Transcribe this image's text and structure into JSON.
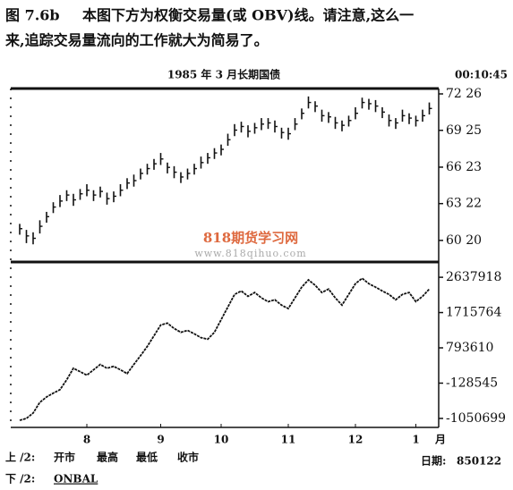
{
  "caption": {
    "label": "图 7.6b",
    "line1": "本图下方为权衡交易量(或 OBV)线。请注意,这么一",
    "line2": "来,追踪交易量流向的工作就大为简易了。"
  },
  "watermark": {
    "brand": "818期货学习网",
    "url": "www.818qihuo.com"
  },
  "chart_data": [
    {
      "type": "ohlc",
      "title": "1985 年 3 月长期国债",
      "time": "00:10:45",
      "high": [
        62.0,
        61.5,
        61.3,
        62.3,
        63.0,
        63.8,
        64.4,
        64.8,
        64.5,
        64.9,
        65.3,
        64.8,
        65.1,
        64.6,
        64.7,
        65.3,
        65.8,
        66.1,
        66.6,
        67.0,
        67.4,
        67.9,
        67.1,
        66.8,
        66.3,
        66.6,
        67.0,
        67.6,
        67.9,
        68.3,
        68.6,
        69.5,
        70.3,
        70.5,
        70.2,
        70.4,
        70.8,
        70.8,
        70.6,
        70.0,
        70.0,
        70.8,
        71.6,
        72.6,
        72.2,
        71.5,
        71.3,
        70.9,
        70.6,
        71.0,
        71.7,
        72.5,
        72.4,
        72.3,
        71.7,
        71.1,
        70.8,
        71.5,
        71.2,
        71.0,
        71.5,
        72.1
      ],
      "low": [
        61.1,
        60.4,
        60.3,
        61.2,
        62.1,
        62.9,
        63.4,
        63.9,
        63.5,
        64.0,
        64.3,
        63.9,
        64.2,
        63.6,
        63.8,
        64.3,
        64.9,
        65.1,
        65.7,
        66.1,
        66.5,
        66.9,
        66.2,
        65.8,
        65.4,
        65.7,
        66.1,
        66.6,
        67.0,
        67.4,
        67.7,
        68.5,
        69.3,
        69.6,
        69.2,
        69.5,
        69.8,
        69.9,
        69.6,
        69.1,
        69.0,
        69.8,
        70.7,
        71.6,
        71.3,
        70.5,
        70.4,
        69.9,
        69.7,
        70.1,
        70.7,
        71.6,
        71.5,
        71.3,
        70.8,
        70.1,
        69.9,
        70.5,
        70.3,
        70.1,
        70.5,
        71.1
      ],
      "close": [
        61.6,
        61.0,
        60.8,
        61.8,
        62.6,
        63.4,
        63.9,
        64.4,
        64.0,
        64.5,
        64.8,
        64.4,
        64.7,
        64.1,
        64.3,
        64.8,
        65.4,
        65.6,
        66.2,
        66.6,
        67.0,
        67.4,
        66.7,
        66.3,
        65.9,
        66.2,
        66.6,
        67.1,
        67.5,
        67.9,
        68.2,
        69.0,
        69.8,
        70.1,
        69.7,
        70.0,
        70.3,
        70.4,
        70.1,
        69.6,
        69.5,
        70.3,
        71.2,
        72.1,
        71.8,
        71.0,
        70.9,
        70.4,
        70.2,
        70.6,
        71.2,
        72.1,
        72.0,
        71.8,
        71.3,
        70.6,
        70.4,
        71.0,
        70.8,
        70.6,
        71.0,
        71.6
      ],
      "ylim": [
        58.83,
        73.26
      ],
      "yticks": [
        {
          "value": 72.8125,
          "label": "72 26"
        },
        {
          "value": 69.78125,
          "label": "69 25"
        },
        {
          "value": 66.71875,
          "label": "66 23"
        },
        {
          "value": 63.6875,
          "label": "63 22"
        },
        {
          "value": 60.625,
          "label": "60 20"
        }
      ]
    },
    {
      "type": "line",
      "name": "ONBAL",
      "x_unit": "月",
      "categories": [
        null,
        null,
        null,
        null,
        null,
        null,
        null,
        null,
        null,
        null,
        "8",
        null,
        null,
        null,
        null,
        null,
        null,
        null,
        null,
        null,
        null,
        "9",
        null,
        null,
        null,
        null,
        null,
        null,
        null,
        null,
        "10",
        null,
        null,
        null,
        null,
        null,
        null,
        null,
        null,
        null,
        "11",
        null,
        null,
        null,
        null,
        null,
        null,
        null,
        null,
        null,
        "12",
        null,
        null,
        null,
        null,
        null,
        null,
        null,
        null,
        "1",
        null,
        null
      ],
      "values": [
        -1100000,
        -1050000,
        -910000,
        -630000,
        -490000,
        -390000,
        -300000,
        -40000,
        260000,
        170000,
        80000,
        220000,
        360000,
        260000,
        310000,
        220000,
        120000,
        360000,
        590000,
        830000,
        1110000,
        1390000,
        1440000,
        1300000,
        1200000,
        1250000,
        1160000,
        1060000,
        1020000,
        1200000,
        1530000,
        1860000,
        2190000,
        2280000,
        2140000,
        2240000,
        2100000,
        2000000,
        2050000,
        1910000,
        1820000,
        2100000,
        2380000,
        2570000,
        2430000,
        2240000,
        2330000,
        2100000,
        1910000,
        2190000,
        2470000,
        2610000,
        2470000,
        2380000,
        2280000,
        2190000,
        2050000,
        2190000,
        2240000,
        2000000,
        2140000,
        2330000
      ],
      "ylim": [
        -1285640,
        3037320
      ],
      "yticks": [
        2637918,
        1715764,
        793610,
        -128545,
        -1050699
      ]
    }
  ],
  "footer": {
    "upper": "上 /2:",
    "upper_fields": [
      "开市",
      "最高",
      "最低",
      "收市"
    ],
    "lower": "下 /2:",
    "lower_field": "ONBAL",
    "date_label": "日期:",
    "date": "850122"
  }
}
